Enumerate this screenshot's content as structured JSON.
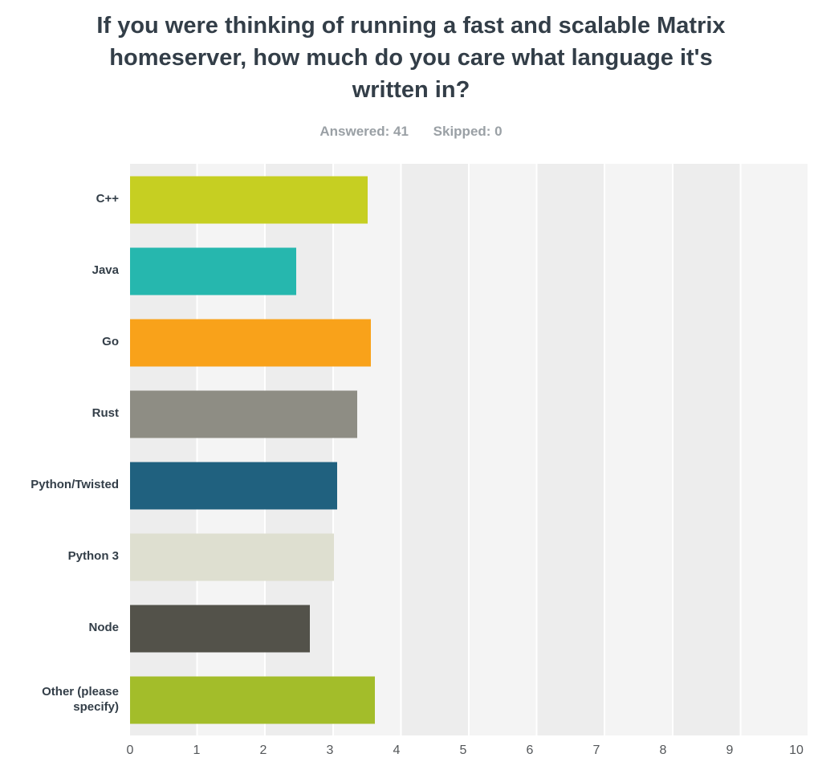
{
  "chart_data": {
    "type": "bar",
    "orientation": "horizontal",
    "title": "If you were thinking of running a fast and scalable Matrix homeserver, how much do you care what language it's written in?",
    "answered": "Answered: 41",
    "skipped": "Skipped: 0",
    "categories": [
      "C++",
      "Java",
      "Go",
      "Rust",
      "Python/Twisted",
      "Python 3",
      "Node",
      "Other (please specify)"
    ],
    "values": [
      3.5,
      2.45,
      3.55,
      3.35,
      3.05,
      3.0,
      2.65,
      3.6
    ],
    "colors": [
      "#c6cf22",
      "#26b7ae",
      "#f9a21a",
      "#8e8d84",
      "#20617f",
      "#dedfd0",
      "#53524a",
      "#a3bd2a"
    ],
    "xlabel": "",
    "ylabel": "",
    "xlim": [
      0,
      10
    ],
    "x_ticks": [
      0,
      1,
      2,
      3,
      4,
      5,
      6,
      7,
      8,
      9,
      10
    ],
    "grid": true,
    "legend": false
  }
}
